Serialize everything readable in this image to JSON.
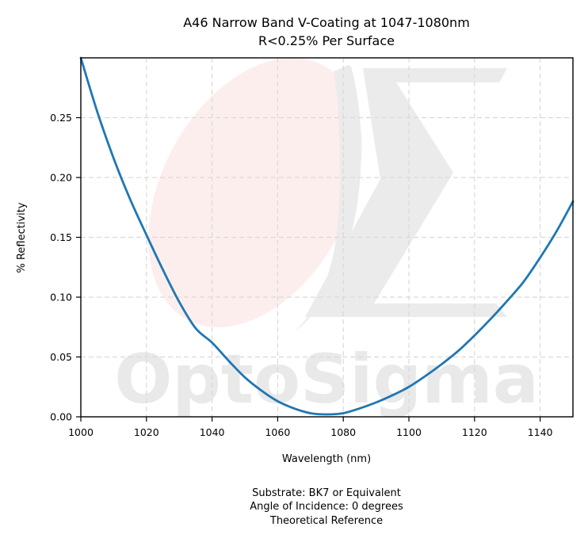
{
  "chart_data": {
    "type": "line",
    "title": "A46 Narrow Band V-Coating at 1047-1080nm",
    "subtitle": "R<0.25% Per Surface",
    "xlabel": "Wavelength (nm)",
    "ylabel": "% Reflectivity",
    "xlim": [
      1000,
      1150
    ],
    "ylim": [
      0,
      0.3
    ],
    "xticks": [
      1000,
      1020,
      1040,
      1060,
      1080,
      1100,
      1120,
      1140
    ],
    "xtick_labels": [
      "1000",
      "1020",
      "1040",
      "1060",
      "1080",
      "1100",
      "1120",
      "1140"
    ],
    "yticks": [
      0.0,
      0.05,
      0.1,
      0.15,
      0.2,
      0.25
    ],
    "ytick_labels": [
      "0.00",
      "0.05",
      "0.10",
      "0.15",
      "0.20",
      "0.25"
    ],
    "grid": true,
    "series": [
      {
        "color": "#1f77b4",
        "x": [
          1000,
          1005,
          1010,
          1015,
          1020,
          1025,
          1030,
          1035,
          1040,
          1045,
          1050,
          1055,
          1060,
          1065,
          1070,
          1075,
          1080,
          1085,
          1090,
          1095,
          1100,
          1105,
          1110,
          1115,
          1120,
          1125,
          1130,
          1135,
          1140,
          1145,
          1150
        ],
        "y": [
          0.3,
          0.255,
          0.216,
          0.182,
          0.152,
          0.123,
          0.096,
          0.074,
          0.062,
          0.047,
          0.033,
          0.022,
          0.013,
          0.007,
          0.003,
          0.002,
          0.003,
          0.007,
          0.012,
          0.018,
          0.025,
          0.034,
          0.044,
          0.055,
          0.068,
          0.082,
          0.097,
          0.113,
          0.133,
          0.155,
          0.18
        ]
      }
    ],
    "annotations": [
      "Substrate: BK7 or Equivalent",
      "Angle of Incidence: 0 degrees",
      "Theoretical Reference"
    ],
    "watermark": "OptoSigma"
  }
}
